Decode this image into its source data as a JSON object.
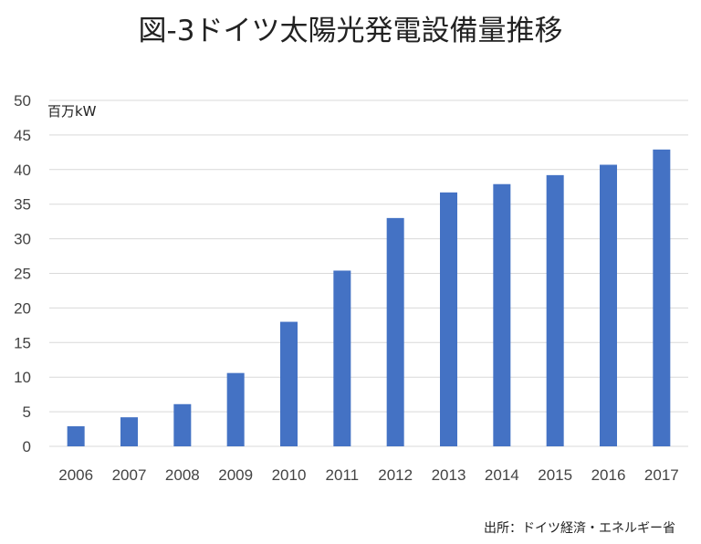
{
  "chart_data": {
    "type": "bar",
    "title": "図-3ドイツ太陽光発電設備量推移",
    "unit_label": "百万kW",
    "source": "出所：ドイツ経済・エネルギー省",
    "categories": [
      "2006",
      "2007",
      "2008",
      "2009",
      "2010",
      "2011",
      "2012",
      "2013",
      "2014",
      "2015",
      "2016",
      "2017"
    ],
    "values": [
      2.9,
      4.2,
      6.1,
      10.6,
      18.0,
      25.4,
      33.0,
      36.7,
      37.9,
      39.2,
      40.7,
      42.9
    ],
    "yticks": [
      0,
      5,
      10,
      15,
      20,
      25,
      30,
      35,
      40,
      45,
      50
    ],
    "ylim": [
      0,
      50
    ],
    "grid": true,
    "bar_color": "#4472c4"
  }
}
